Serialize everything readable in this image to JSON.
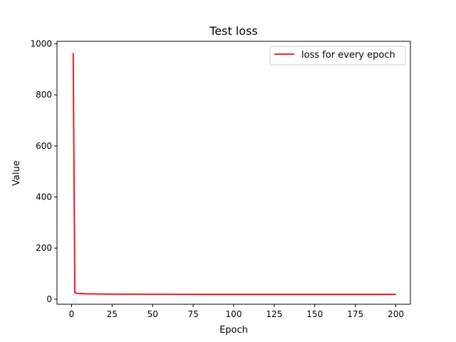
{
  "chart_data": {
    "type": "line",
    "title": "Test loss",
    "xlabel": "Epoch",
    "ylabel": "Value",
    "xlim": [
      -9,
      209
    ],
    "ylim": [
      -20,
      1010
    ],
    "xticks": [
      0,
      25,
      50,
      75,
      100,
      125,
      150,
      175,
      200
    ],
    "yticks": [
      0,
      200,
      400,
      600,
      800,
      1000
    ],
    "grid": false,
    "legend_position": "top-right",
    "series": [
      {
        "name": "loss for every epoch",
        "color": "#ff0000",
        "x": [
          1,
          2,
          3,
          5,
          8,
          12,
          20,
          30,
          40,
          50,
          60,
          80,
          100,
          120,
          150,
          175,
          200
        ],
        "y": [
          964,
          25,
          23,
          22,
          21,
          20.5,
          20,
          19.5,
          19.5,
          19,
          19,
          18.5,
          18.5,
          18.5,
          18.5,
          18.5,
          18.5
        ]
      }
    ]
  }
}
